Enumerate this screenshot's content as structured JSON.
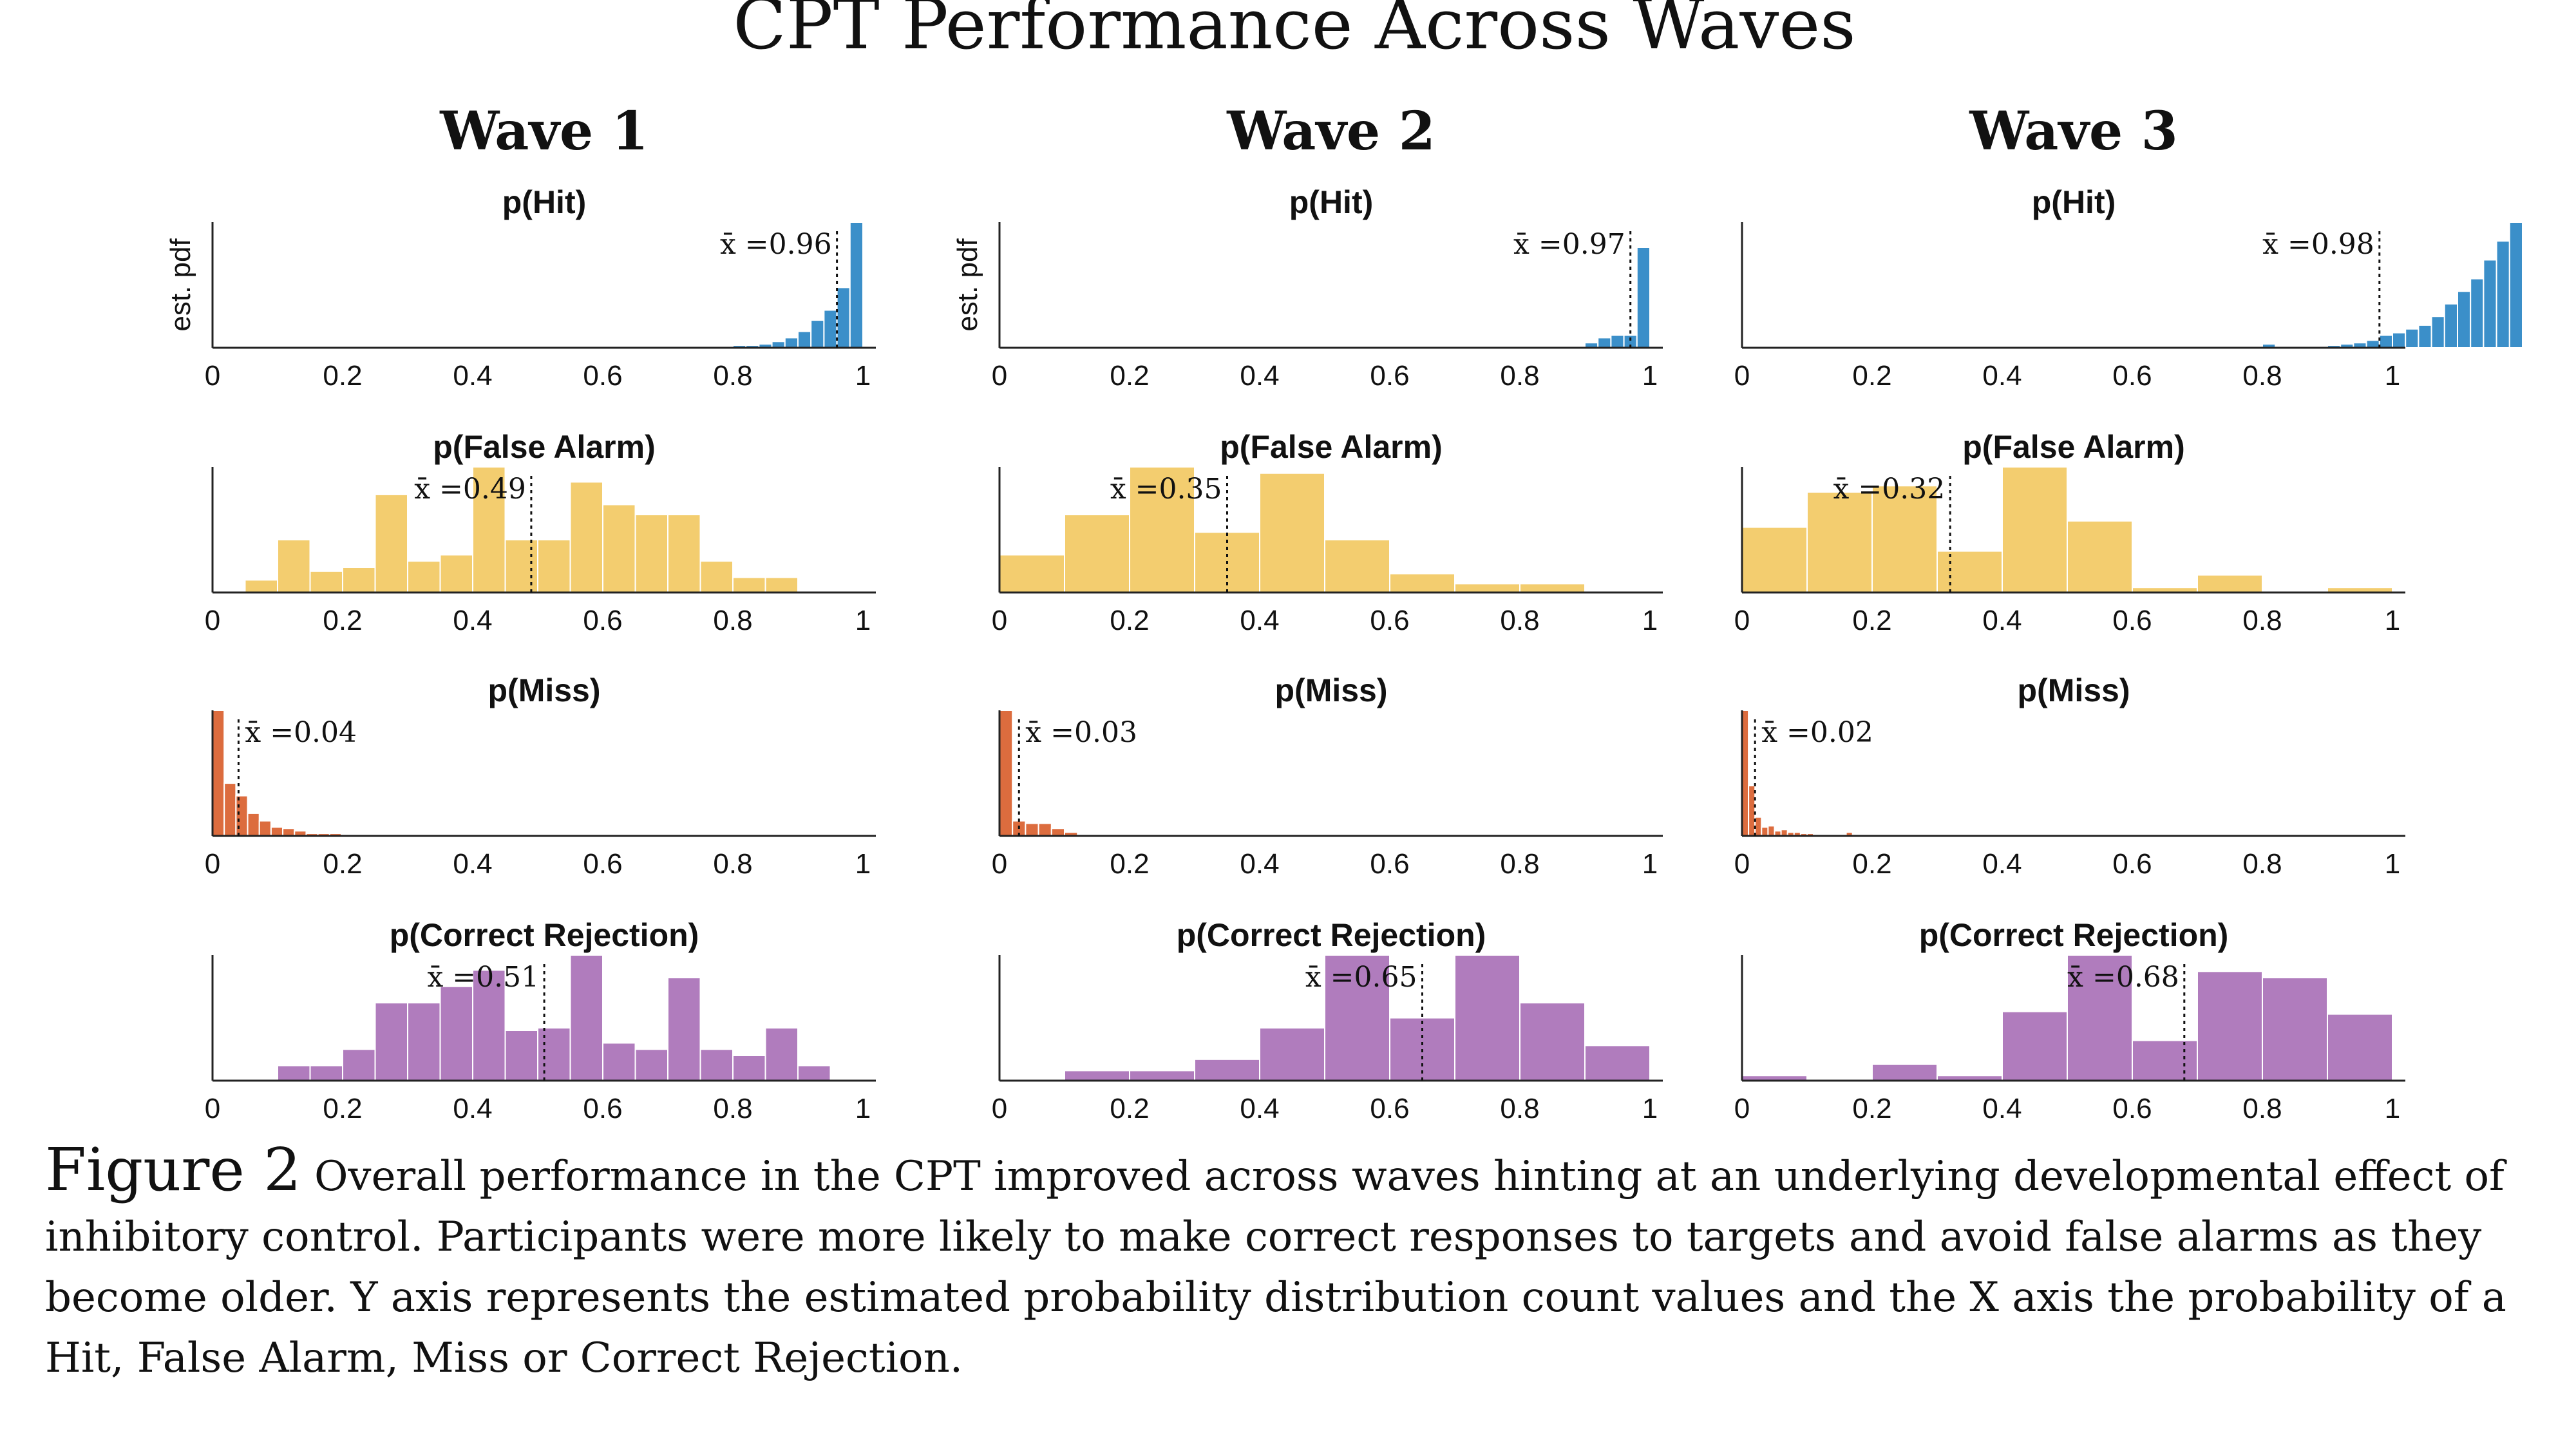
{
  "title": "CPT Performance Across Waves",
  "waves": [
    "Wave 1",
    "Wave 2",
    "Wave 3"
  ],
  "rows": [
    {
      "title": "p(Hit)",
      "color": "#3b8fc9"
    },
    {
      "title": "p(False Alarm)",
      "color": "#f3cd6f"
    },
    {
      "title": "p(Miss)",
      "color": "#dc6c3e"
    },
    {
      "title": "p(Correct Rejection)",
      "color": "#b07cbd"
    }
  ],
  "ylabel": "est. pdf",
  "x_ticks": [
    "0",
    "0.2",
    "0.4",
    "0.6",
    "0.8",
    "1"
  ],
  "caption": {
    "label": "Figure 2",
    "text": "Overall performance in the CPT improved across waves hinting at an underlying developmental effect of inhibitory control. Participants were more likely to make correct responses to targets and avoid false alarms as they become older. Y axis represents the estimated probability distribution count values and the X axis the probability of a Hit, False Alarm, Miss or Correct Rejection."
  },
  "chart_data": [
    {
      "type": "bar",
      "wave": "Wave 1",
      "title": "p(Hit)",
      "mean": 0.96,
      "mean_label": "x̄ =0.96",
      "xlim": [
        0,
        1
      ],
      "bin_start": 0.8,
      "bin_width": 0.02,
      "heights": [
        0.02,
        0.02,
        0.03,
        0.05,
        0.08,
        0.13,
        0.22,
        0.3,
        0.48,
        1.0
      ]
    },
    {
      "type": "bar",
      "wave": "Wave 2",
      "title": "p(Hit)",
      "mean": 0.97,
      "mean_label": "x̄ =0.97",
      "xlim": [
        0,
        1
      ],
      "bin_start": 0.88,
      "bin_width": 0.02,
      "heights": [
        0.01,
        0.04,
        0.08,
        0.1,
        0.1,
        0.8
      ]
    },
    {
      "type": "bar",
      "wave": "Wave 3",
      "title": "p(Hit)",
      "mean": 0.98,
      "mean_label": "x̄ =0.98",
      "xlim": [
        0,
        1
      ],
      "bin_start": 0.8,
      "bin_width": 0.02,
      "heights": [
        0.03,
        0,
        0,
        0.01,
        0.01,
        0.02,
        0.03,
        0.04,
        0.06,
        0.1,
        0.12,
        0.15,
        0.18,
        0.25,
        0.35,
        0.45,
        0.55,
        0.7,
        0.85,
        1.0
      ]
    },
    {
      "type": "bar",
      "wave": "Wave 1",
      "title": "p(False Alarm)",
      "mean": 0.49,
      "mean_label": "x̄ =0.49",
      "xlim": [
        0,
        1
      ],
      "bin_start": 0.05,
      "bin_width": 0.05,
      "heights": [
        0.1,
        0.42,
        0.17,
        0.2,
        0.78,
        0.25,
        0.3,
        1.0,
        0.42,
        0.42,
        0.88,
        0.7,
        0.62,
        0.62,
        0.25,
        0.12,
        0.12
      ]
    },
    {
      "type": "bar",
      "wave": "Wave 2",
      "title": "p(False Alarm)",
      "mean": 0.35,
      "mean_label": "x̄ =0.35",
      "xlim": [
        0,
        1
      ],
      "bin_start": 0.0,
      "bin_width": 0.1,
      "heights": [
        0.3,
        0.62,
        1.0,
        0.48,
        0.95,
        0.42,
        0.15,
        0.07,
        0.07
      ]
    },
    {
      "type": "bar",
      "wave": "Wave 3",
      "title": "p(False Alarm)",
      "mean": 0.32,
      "mean_label": "x̄ =0.32",
      "xlim": [
        0,
        1
      ],
      "bin_start": 0.0,
      "bin_width": 0.1,
      "heights": [
        0.52,
        0.8,
        0.85,
        0.33,
        1.0,
        0.57,
        0.04,
        0.14,
        0,
        0.04
      ]
    },
    {
      "type": "bar",
      "wave": "Wave 1",
      "title": "p(Miss)",
      "mean": 0.04,
      "mean_label": "x̄ =0.04",
      "xlim": [
        0,
        1
      ],
      "bin_start": 0.0,
      "bin_width": 0.018,
      "heights": [
        1.0,
        0.42,
        0.32,
        0.18,
        0.12,
        0.07,
        0.06,
        0.04,
        0.02,
        0.02,
        0.02
      ]
    },
    {
      "type": "bar",
      "wave": "Wave 2",
      "title": "p(Miss)",
      "mean": 0.03,
      "mean_label": "x̄ =0.03",
      "xlim": [
        0,
        1
      ],
      "bin_start": 0.0,
      "bin_width": 0.02,
      "heights": [
        1.0,
        0.12,
        0.1,
        0.1,
        0.06,
        0.03
      ]
    },
    {
      "type": "bar",
      "wave": "Wave 3",
      "title": "p(Miss)",
      "mean": 0.02,
      "mean_label": "x̄ =0.02",
      "xlim": [
        0,
        1
      ],
      "bin_start": 0.0,
      "bin_width": 0.01,
      "heights": [
        1.0,
        0.4,
        0.15,
        0.07,
        0.08,
        0.04,
        0.05,
        0.03,
        0.03,
        0.02,
        0.02,
        0.01,
        0.01,
        0.01,
        0.01,
        0.01,
        0.03
      ]
    },
    {
      "type": "bar",
      "wave": "Wave 1",
      "title": "p(Correct Rejection)",
      "mean": 0.51,
      "mean_label": "x̄ =0.51",
      "xlim": [
        0,
        1
      ],
      "bin_start": 0.1,
      "bin_width": 0.05,
      "heights": [
        0.12,
        0.12,
        0.25,
        0.62,
        0.62,
        0.75,
        0.88,
        0.4,
        0.42,
        1.0,
        0.3,
        0.25,
        0.82,
        0.25,
        0.2,
        0.42,
        0.12
      ]
    },
    {
      "type": "bar",
      "wave": "Wave 2",
      "title": "p(Correct Rejection)",
      "mean": 0.65,
      "mean_label": "x̄ =0.65",
      "xlim": [
        0,
        1
      ],
      "bin_start": 0.0,
      "bin_width": 0.1,
      "heights": [
        0,
        0.08,
        0.08,
        0.17,
        0.42,
        1.0,
        0.5,
        1.0,
        0.62,
        0.28
      ]
    },
    {
      "type": "bar",
      "wave": "Wave 3",
      "title": "p(Correct Rejection)",
      "mean": 0.68,
      "mean_label": "x̄ =0.68",
      "xlim": [
        0,
        1
      ],
      "bin_start": 0.0,
      "bin_width": 0.1,
      "heights": [
        0.04,
        0,
        0.13,
        0.04,
        0.55,
        1.0,
        0.32,
        0.87,
        0.82,
        0.53
      ]
    }
  ]
}
